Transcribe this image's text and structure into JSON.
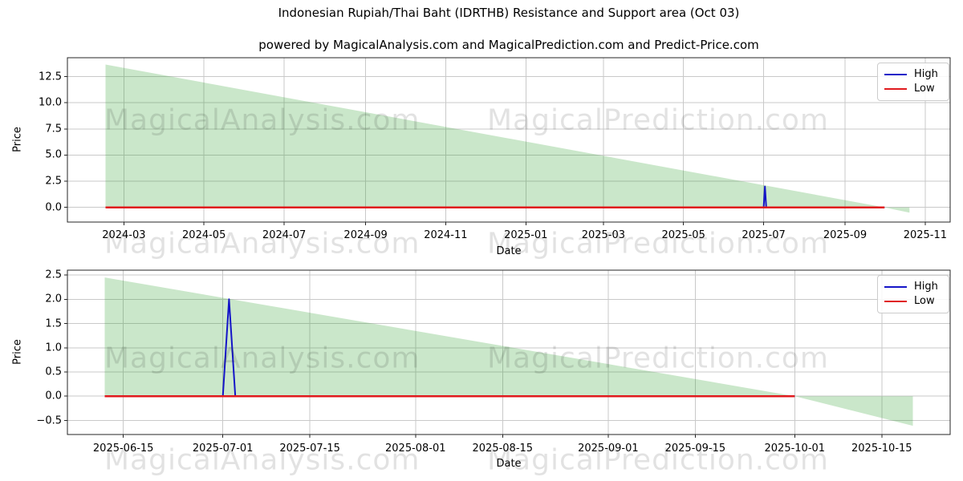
{
  "title": "Indonesian Rupiah/Thai Baht (IDRTHB) Resistance and Support area (Oct 03)",
  "subtitle": "powered by MagicalAnalysis.com and MagicalPrediction.com and Predict-Price.com",
  "watermarks": {
    "left": "MagicalAnalysis.com",
    "right": "MagicalPrediction.com"
  },
  "legend": {
    "position": "upper right",
    "items": [
      {
        "label": "High",
        "color_key": "high"
      },
      {
        "label": "Low",
        "color_key": "low"
      }
    ]
  },
  "colors": {
    "high": "#1515c8",
    "low": "#e01b1e",
    "area_fill": "#2ca02c",
    "area_opacity": 0.25,
    "grid": "#c9c9c9",
    "spine": "#262626",
    "watermark": "rgba(0,0,0,0.115)",
    "text": "#000000"
  },
  "chart_data": [
    {
      "type": "area",
      "name": "full-history-resistance-support",
      "xlabel": "Date",
      "ylabel": "Price",
      "grid": true,
      "xlim": [
        "2024-01-18",
        "2025-11-20"
      ],
      "ylim": [
        -1.4,
        14.3
      ],
      "x_ticks": [
        {
          "date": "2024-03-01",
          "label": "2024-03"
        },
        {
          "date": "2024-05-01",
          "label": "2024-05"
        },
        {
          "date": "2024-07-01",
          "label": "2024-07"
        },
        {
          "date": "2024-09-01",
          "label": "2024-09"
        },
        {
          "date": "2024-11-01",
          "label": "2024-11"
        },
        {
          "date": "2025-01-01",
          "label": "2025-01"
        },
        {
          "date": "2025-03-01",
          "label": "2025-03"
        },
        {
          "date": "2025-05-01",
          "label": "2025-05"
        },
        {
          "date": "2025-07-01",
          "label": "2025-07"
        },
        {
          "date": "2025-09-01",
          "label": "2025-09"
        },
        {
          "date": "2025-11-01",
          "label": "2025-11"
        }
      ],
      "y_ticks": [
        {
          "value": 0,
          "label": "0.0"
        },
        {
          "value": 2.5,
          "label": "2.5"
        },
        {
          "value": 5,
          "label": "5.0"
        },
        {
          "value": 7.5,
          "label": "7.5"
        },
        {
          "value": 10,
          "label": "10.0"
        },
        {
          "value": 12.5,
          "label": "12.5"
        }
      ],
      "series": [
        {
          "name": "High",
          "color_key": "high",
          "width": 2,
          "points": [
            [
              "2024-02-16",
              0
            ],
            [
              "2025-07-01",
              0
            ],
            [
              "2025-07-02",
              2.0
            ],
            [
              "2025-07-03",
              0
            ],
            [
              "2025-10-01",
              0
            ]
          ]
        },
        {
          "name": "Low",
          "color_key": "low",
          "width": 2.5,
          "points": [
            [
              "2024-02-16",
              0
            ],
            [
              "2025-10-01",
              0
            ]
          ]
        }
      ],
      "area_series": {
        "name": "Resistance and Support area",
        "polygons": [
          [
            [
              "2024-02-16",
              13.65
            ],
            [
              "2025-10-01",
              0
            ],
            [
              "2024-02-16",
              0
            ]
          ],
          [
            [
              "2025-10-01",
              0
            ],
            [
              "2025-10-20",
              0
            ],
            [
              "2025-10-20",
              -0.5
            ]
          ]
        ]
      }
    },
    {
      "type": "area",
      "name": "recent-zoom-resistance-support",
      "xlabel": "Date",
      "ylabel": "Price",
      "grid": true,
      "xlim": [
        "2025-06-06",
        "2025-10-26"
      ],
      "ylim": [
        -0.79,
        2.6
      ],
      "x_ticks": [
        {
          "date": "2025-06-15",
          "label": "2025-06-15"
        },
        {
          "date": "2025-07-01",
          "label": "2025-07-01"
        },
        {
          "date": "2025-07-15",
          "label": "2025-07-15"
        },
        {
          "date": "2025-08-01",
          "label": "2025-08-01"
        },
        {
          "date": "2025-08-15",
          "label": "2025-08-15"
        },
        {
          "date": "2025-09-01",
          "label": "2025-09-01"
        },
        {
          "date": "2025-09-15",
          "label": "2025-09-15"
        },
        {
          "date": "2025-10-01",
          "label": "2025-10-01"
        },
        {
          "date": "2025-10-15",
          "label": "2025-10-15"
        }
      ],
      "y_ticks": [
        {
          "value": -0.5,
          "label": "−0.5"
        },
        {
          "value": 0,
          "label": "0.0"
        },
        {
          "value": 0.5,
          "label": "0.5"
        },
        {
          "value": 1,
          "label": "1.0"
        },
        {
          "value": 1.5,
          "label": "1.5"
        },
        {
          "value": 2,
          "label": "2.0"
        },
        {
          "value": 2.5,
          "label": "2.5"
        }
      ],
      "series": [
        {
          "name": "High",
          "color_key": "high",
          "width": 2,
          "points": [
            [
              "2025-06-12",
              0
            ],
            [
              "2025-07-01",
              0
            ],
            [
              "2025-07-02",
              2.0
            ],
            [
              "2025-07-03",
              0
            ],
            [
              "2025-10-01",
              0
            ]
          ]
        },
        {
          "name": "Low",
          "color_key": "low",
          "width": 2.5,
          "points": [
            [
              "2025-06-12",
              0
            ],
            [
              "2025-10-01",
              0
            ]
          ]
        }
      ],
      "area_series": {
        "name": "Resistance and Support area",
        "polygons": [
          [
            [
              "2025-06-12",
              2.45
            ],
            [
              "2025-10-01",
              0
            ],
            [
              "2025-06-12",
              0
            ]
          ],
          [
            [
              "2025-10-01",
              0
            ],
            [
              "2025-10-20",
              0
            ],
            [
              "2025-10-20",
              -0.61
            ]
          ]
        ]
      }
    }
  ]
}
